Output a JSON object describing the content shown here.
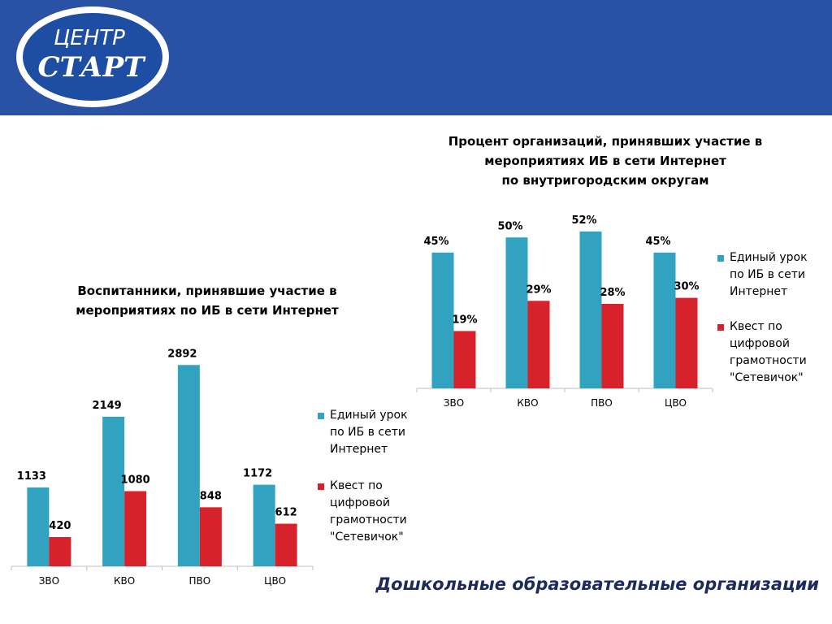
{
  "logo": {
    "line1": "ЦЕНТР",
    "line2": "СТАРТ"
  },
  "colors": {
    "header": "#2a52a4",
    "series1": "#31a3c0",
    "series2": "#d8222b",
    "logo_fill": "#1e4ea3"
  },
  "footer": {
    "caption": "Дошкольные образовательные организации"
  },
  "chart_data": [
    {
      "type": "bar",
      "title_lines": [
        "Воспитанники, принявшие участие в",
        "мероприятиях по ИБ в сети Интернет"
      ],
      "categories": [
        "ЗВО",
        "КВО",
        "ПВО",
        "ЦВО"
      ],
      "series": [
        {
          "name": "Единый урок по ИБ в сети Интернет",
          "values": [
            1133,
            2149,
            2892,
            1172
          ],
          "labels": [
            "1133",
            "2149",
            "2892",
            "1172"
          ]
        },
        {
          "name": "Квест по цифровой грамотности \"Сетевичок\"",
          "values": [
            420,
            1080,
            848,
            612
          ],
          "labels": [
            "420",
            "1080",
            "848",
            "612"
          ]
        }
      ],
      "ylim": [
        0,
        3000
      ],
      "legend_lines": [
        [
          "Единый урок",
          "по ИБ в сети",
          "Интернет"
        ],
        [
          "Квест по",
          "цифровой",
          "грамотности",
          "\"Сетевичок\""
        ]
      ],
      "legend_position": "right",
      "grid": false
    },
    {
      "type": "bar",
      "title_lines": [
        "Процент организаций, принявших участие в",
        "мероприятиях ИБ в сети Интернет",
        "по внутригородским округам"
      ],
      "categories": [
        "ЗВО",
        "КВО",
        "ПВО",
        "ЦВО"
      ],
      "series": [
        {
          "name": "Единый урок по ИБ в сети Интернет",
          "values": [
            45,
            50,
            52,
            45
          ],
          "labels": [
            "45%",
            "50%",
            "52%",
            "45%"
          ]
        },
        {
          "name": "Квест по цифровой грамотности \"Сетевичок\"",
          "values": [
            19,
            29,
            28,
            30
          ],
          "labels": [
            "19%",
            "29%",
            "28%",
            "30%"
          ]
        }
      ],
      "ylim": [
        0,
        56
      ],
      "legend_lines": [
        [
          "Единый урок",
          "по ИБ в сети",
          "Интернет"
        ],
        [
          "Квест по",
          "цифровой",
          "грамотности",
          "\"Сетевичок\""
        ]
      ],
      "legend_position": "right",
      "grid": false
    }
  ]
}
